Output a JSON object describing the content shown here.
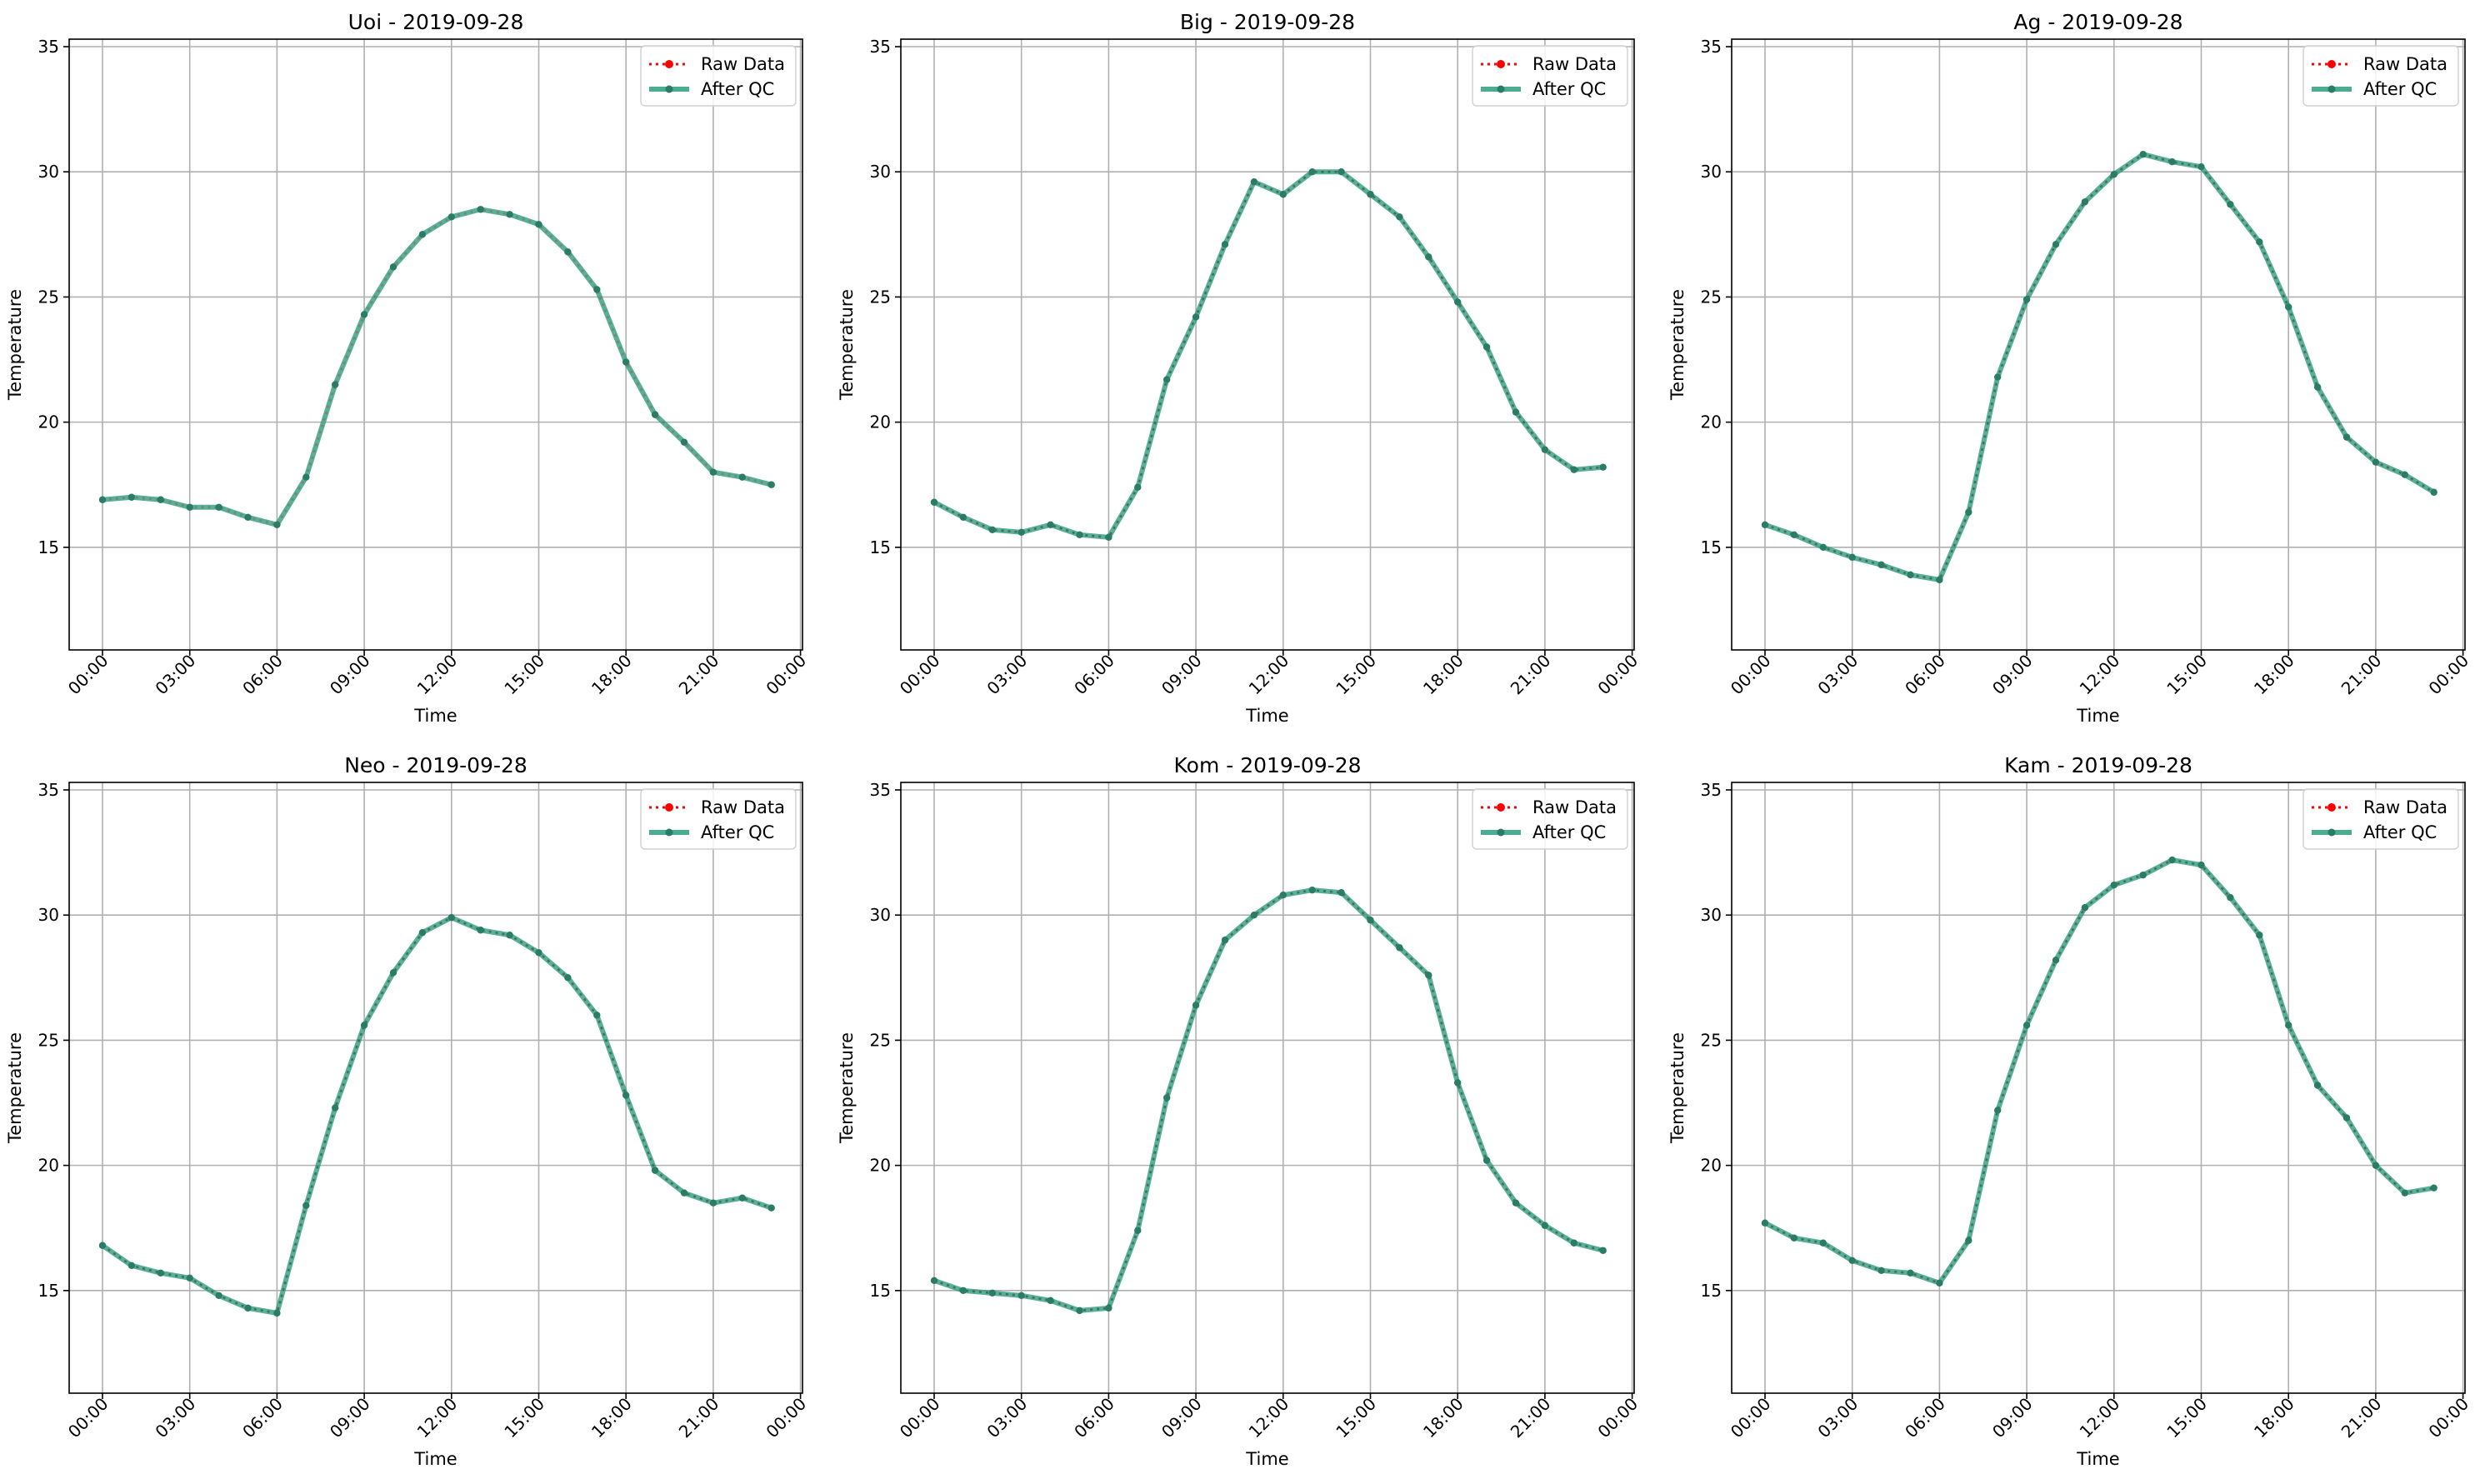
{
  "chart_data": [
    {
      "type": "line",
      "title": "Uoi - 2019-09-28",
      "xlabel": "Time",
      "ylabel": "Temperature",
      "x": [
        "00:00",
        "01:00",
        "02:00",
        "03:00",
        "04:00",
        "05:00",
        "06:00",
        "07:00",
        "08:00",
        "09:00",
        "10:00",
        "11:00",
        "12:00",
        "13:00",
        "14:00",
        "15:00",
        "16:00",
        "17:00",
        "18:00",
        "19:00",
        "20:00",
        "21:00",
        "22:00",
        "23:00"
      ],
      "xticks": [
        "00:00",
        "03:00",
        "06:00",
        "09:00",
        "12:00",
        "15:00",
        "18:00",
        "21:00",
        "00:00"
      ],
      "ylim": [
        10.9,
        35.3
      ],
      "yticks": [
        15,
        20,
        25,
        30,
        35
      ],
      "grid": true,
      "legend": "upper-right",
      "series": [
        {
          "name": "Raw Data",
          "color": "#ff0000",
          "values": [
            16.9,
            17.0,
            16.9,
            16.6,
            16.6,
            16.2,
            15.9,
            17.8,
            21.5,
            24.3,
            26.2,
            27.5,
            28.2,
            28.5,
            28.3,
            27.9,
            26.8,
            25.3,
            22.4,
            20.3,
            19.2,
            18.0,
            17.8,
            17.5
          ]
        },
        {
          "name": "After QC",
          "color": "#2a9d7e",
          "values": [
            16.9,
            17.0,
            16.9,
            16.6,
            16.6,
            16.2,
            15.9,
            17.8,
            21.5,
            24.3,
            26.2,
            27.5,
            28.2,
            28.5,
            28.3,
            27.9,
            26.8,
            25.3,
            22.4,
            20.3,
            19.2,
            18.0,
            17.8,
            17.5
          ]
        }
      ]
    },
    {
      "type": "line",
      "title": "Big - 2019-09-28",
      "xlabel": "Time",
      "ylabel": "Temperature",
      "x": [
        "00:00",
        "01:00",
        "02:00",
        "03:00",
        "04:00",
        "05:00",
        "06:00",
        "07:00",
        "08:00",
        "09:00",
        "10:00",
        "11:00",
        "12:00",
        "13:00",
        "14:00",
        "15:00",
        "16:00",
        "17:00",
        "18:00",
        "19:00",
        "20:00",
        "21:00",
        "22:00",
        "23:00"
      ],
      "xticks": [
        "00:00",
        "03:00",
        "06:00",
        "09:00",
        "12:00",
        "15:00",
        "18:00",
        "21:00",
        "00:00"
      ],
      "ylim": [
        10.9,
        35.3
      ],
      "yticks": [
        15,
        20,
        25,
        30,
        35
      ],
      "grid": true,
      "legend": "upper-right",
      "series": [
        {
          "name": "Raw Data",
          "color": "#ff0000",
          "values": [
            16.8,
            16.2,
            15.7,
            15.6,
            15.9,
            15.5,
            15.4,
            17.4,
            21.7,
            24.2,
            27.1,
            29.6,
            29.1,
            30.0,
            30.0,
            29.1,
            28.2,
            26.6,
            24.8,
            23.0,
            20.4,
            18.9,
            18.1,
            18.2
          ]
        },
        {
          "name": "After QC",
          "color": "#2a9d7e",
          "values": [
            16.8,
            16.2,
            15.7,
            15.6,
            15.9,
            15.5,
            15.4,
            17.4,
            21.7,
            24.2,
            27.1,
            29.6,
            29.1,
            30.0,
            30.0,
            29.1,
            28.2,
            26.6,
            24.8,
            23.0,
            20.4,
            18.9,
            18.1,
            18.2
          ]
        }
      ]
    },
    {
      "type": "line",
      "title": "Ag - 2019-09-28",
      "xlabel": "Time",
      "ylabel": "Temperature",
      "x": [
        "00:00",
        "01:00",
        "02:00",
        "03:00",
        "04:00",
        "05:00",
        "06:00",
        "07:00",
        "08:00",
        "09:00",
        "10:00",
        "11:00",
        "12:00",
        "13:00",
        "14:00",
        "15:00",
        "16:00",
        "17:00",
        "18:00",
        "19:00",
        "20:00",
        "21:00",
        "22:00",
        "23:00"
      ],
      "xticks": [
        "00:00",
        "03:00",
        "06:00",
        "09:00",
        "12:00",
        "15:00",
        "18:00",
        "21:00",
        "00:00"
      ],
      "ylim": [
        10.9,
        35.3
      ],
      "yticks": [
        15,
        20,
        25,
        30,
        35
      ],
      "grid": true,
      "legend": "upper-right",
      "series": [
        {
          "name": "Raw Data",
          "color": "#ff0000",
          "values": [
            15.9,
            15.5,
            15.0,
            14.6,
            14.3,
            13.9,
            13.7,
            16.4,
            21.8,
            24.9,
            27.1,
            28.8,
            29.9,
            30.7,
            30.4,
            30.2,
            28.7,
            27.2,
            24.6,
            21.4,
            19.4,
            18.4,
            17.9,
            17.2
          ]
        },
        {
          "name": "After QC",
          "color": "#2a9d7e",
          "values": [
            15.9,
            15.5,
            15.0,
            14.6,
            14.3,
            13.9,
            13.7,
            16.4,
            21.8,
            24.9,
            27.1,
            28.8,
            29.9,
            30.7,
            30.4,
            30.2,
            28.7,
            27.2,
            24.6,
            21.4,
            19.4,
            18.4,
            17.9,
            17.2
          ]
        }
      ]
    },
    {
      "type": "line",
      "title": "Neo - 2019-09-28",
      "xlabel": "Time",
      "ylabel": "Temperature",
      "x": [
        "00:00",
        "01:00",
        "02:00",
        "03:00",
        "04:00",
        "05:00",
        "06:00",
        "07:00",
        "08:00",
        "09:00",
        "10:00",
        "11:00",
        "12:00",
        "13:00",
        "14:00",
        "15:00",
        "16:00",
        "17:00",
        "18:00",
        "19:00",
        "20:00",
        "21:00",
        "22:00",
        "23:00"
      ],
      "xticks": [
        "00:00",
        "03:00",
        "06:00",
        "09:00",
        "12:00",
        "15:00",
        "18:00",
        "21:00",
        "00:00"
      ],
      "ylim": [
        10.9,
        35.3
      ],
      "yticks": [
        15,
        20,
        25,
        30,
        35
      ],
      "grid": true,
      "legend": "upper-right",
      "series": [
        {
          "name": "Raw Data",
          "color": "#ff0000",
          "values": [
            16.8,
            16.0,
            15.7,
            15.5,
            14.8,
            14.3,
            14.1,
            18.4,
            22.3,
            25.6,
            27.7,
            29.3,
            29.9,
            29.4,
            29.2,
            28.5,
            27.5,
            26.0,
            22.8,
            19.8,
            18.9,
            18.5,
            18.7,
            18.3
          ]
        },
        {
          "name": "After QC",
          "color": "#2a9d7e",
          "values": [
            16.8,
            16.0,
            15.7,
            15.5,
            14.8,
            14.3,
            14.1,
            18.4,
            22.3,
            25.6,
            27.7,
            29.3,
            29.9,
            29.4,
            29.2,
            28.5,
            27.5,
            26.0,
            22.8,
            19.8,
            18.9,
            18.5,
            18.7,
            18.3
          ]
        }
      ]
    },
    {
      "type": "line",
      "title": "Kom - 2019-09-28",
      "xlabel": "Time",
      "ylabel": "Temperature",
      "x": [
        "00:00",
        "01:00",
        "02:00",
        "03:00",
        "04:00",
        "05:00",
        "06:00",
        "07:00",
        "08:00",
        "09:00",
        "10:00",
        "11:00",
        "12:00",
        "13:00",
        "14:00",
        "15:00",
        "16:00",
        "17:00",
        "18:00",
        "19:00",
        "20:00",
        "21:00",
        "22:00",
        "23:00"
      ],
      "xticks": [
        "00:00",
        "03:00",
        "06:00",
        "09:00",
        "12:00",
        "15:00",
        "18:00",
        "21:00",
        "00:00"
      ],
      "ylim": [
        10.9,
        35.3
      ],
      "yticks": [
        15,
        20,
        25,
        30,
        35
      ],
      "grid": true,
      "legend": "upper-right",
      "series": [
        {
          "name": "Raw Data",
          "color": "#ff0000",
          "values": [
            15.4,
            15.0,
            14.9,
            14.8,
            14.6,
            14.2,
            14.3,
            17.4,
            22.7,
            26.4,
            29.0,
            30.0,
            30.8,
            31.0,
            30.9,
            29.8,
            28.7,
            27.6,
            23.3,
            20.2,
            18.5,
            17.6,
            16.9,
            16.6
          ]
        },
        {
          "name": "After QC",
          "color": "#2a9d7e",
          "values": [
            15.4,
            15.0,
            14.9,
            14.8,
            14.6,
            14.2,
            14.3,
            17.4,
            22.7,
            26.4,
            29.0,
            30.0,
            30.8,
            31.0,
            30.9,
            29.8,
            28.7,
            27.6,
            23.3,
            20.2,
            18.5,
            17.6,
            16.9,
            16.6
          ]
        }
      ]
    },
    {
      "type": "line",
      "title": "Kam - 2019-09-28",
      "xlabel": "Time",
      "ylabel": "Temperature",
      "x": [
        "00:00",
        "01:00",
        "02:00",
        "03:00",
        "04:00",
        "05:00",
        "06:00",
        "07:00",
        "08:00",
        "09:00",
        "10:00",
        "11:00",
        "12:00",
        "13:00",
        "14:00",
        "15:00",
        "16:00",
        "17:00",
        "18:00",
        "19:00",
        "20:00",
        "21:00",
        "22:00",
        "23:00"
      ],
      "xticks": [
        "00:00",
        "03:00",
        "06:00",
        "09:00",
        "12:00",
        "15:00",
        "18:00",
        "21:00",
        "00:00"
      ],
      "ylim": [
        10.9,
        35.3
      ],
      "yticks": [
        15,
        20,
        25,
        30,
        35
      ],
      "grid": true,
      "legend": "upper-right",
      "series": [
        {
          "name": "Raw Data",
          "color": "#ff0000",
          "values": [
            17.7,
            17.1,
            16.9,
            16.2,
            15.8,
            15.7,
            15.3,
            17.0,
            22.2,
            25.6,
            28.2,
            30.3,
            31.2,
            31.6,
            32.2,
            32.0,
            30.7,
            29.2,
            25.6,
            23.2,
            21.9,
            20.0,
            18.9,
            19.1
          ]
        },
        {
          "name": "After QC",
          "color": "#2a9d7e",
          "values": [
            17.7,
            17.1,
            16.9,
            16.2,
            15.8,
            15.7,
            15.3,
            17.0,
            22.2,
            25.6,
            28.2,
            30.3,
            31.2,
            31.6,
            32.2,
            32.0,
            30.7,
            29.2,
            25.6,
            23.2,
            21.9,
            20.0,
            18.9,
            19.1
          ]
        }
      ]
    }
  ]
}
